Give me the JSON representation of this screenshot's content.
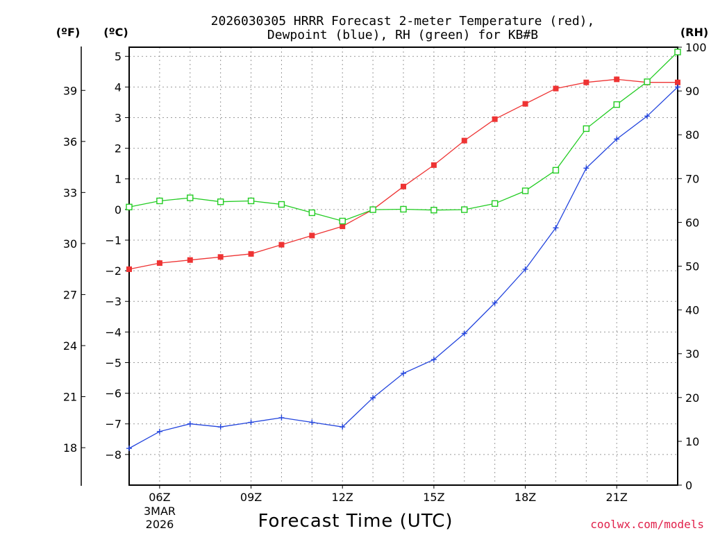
{
  "title_line1": "2026030305 HRRR Forecast 2-meter Temperature (red),",
  "title_line2": "Dewpoint (blue), RH (green) for KB#B",
  "unit_f": "(ºF)",
  "unit_c": "(ºC)",
  "unit_rh": "(RH)",
  "x_axis_label": "Forecast Time (UTC)",
  "date_line1": "3MAR",
  "date_line2": "2026",
  "credit": "coolwx.com/models",
  "colors": {
    "temperature": "#ee3333",
    "dewpoint": "#2244dd",
    "rh": "#22cc22"
  },
  "chart_data": {
    "type": "line",
    "title": "2026030305 HRRR Forecast 2-meter Temperature (red), Dewpoint (blue), RH (green) for KB#B",
    "xlabel": "Forecast Time (UTC)",
    "x_hours": [
      5,
      6,
      7,
      8,
      9,
      10,
      11,
      12,
      13,
      14,
      15,
      16,
      17,
      18,
      19,
      20,
      21,
      22,
      23
    ],
    "x_ticks": [
      {
        "hour": 6,
        "label": "06Z"
      },
      {
        "hour": 9,
        "label": "09Z"
      },
      {
        "hour": 12,
        "label": "12Z"
      },
      {
        "hour": 15,
        "label": "15Z"
      },
      {
        "hour": 18,
        "label": "18Z"
      },
      {
        "hour": 21,
        "label": "21Z"
      }
    ],
    "xlim": [
      5,
      23
    ],
    "ylim_c": [
      -9.0,
      5.3
    ],
    "left_c_ticks": [
      "5",
      "4",
      "3",
      "2",
      "1",
      "0",
      "−1",
      "−2",
      "−3",
      "−4",
      "−5",
      "−6",
      "−7",
      "−8"
    ],
    "left_f_ticks": [
      "39",
      "36",
      "33",
      "30",
      "27",
      "24",
      "21",
      "18"
    ],
    "ylim_rh": [
      0,
      100
    ],
    "right_rh_ticks": [
      "100",
      "90",
      "80",
      "70",
      "60",
      "50",
      "40",
      "30",
      "20",
      "10",
      "0"
    ],
    "series": [
      {
        "name": "Temperature",
        "color_key": "temperature",
        "unit": "C",
        "marker": "filled-square",
        "values": [
          -1.95,
          -1.75,
          -1.65,
          -1.55,
          -1.45,
          -1.15,
          -0.85,
          -0.55,
          0.0,
          0.75,
          1.45,
          2.25,
          2.95,
          3.45,
          3.95,
          4.15,
          4.25,
          4.15,
          4.15
        ]
      },
      {
        "name": "Dewpoint",
        "color_key": "dewpoint",
        "unit": "C",
        "marker": "plus",
        "values": [
          -7.8,
          -7.25,
          -7.0,
          -7.1,
          -6.95,
          -6.8,
          -6.95,
          -7.1,
          -6.15,
          -5.35,
          -4.9,
          -4.05,
          -3.05,
          -1.95,
          -0.6,
          1.35,
          2.3,
          3.05,
          4.0
        ]
      },
      {
        "name": "RH",
        "color_key": "rh",
        "unit": "%",
        "marker": "open-square",
        "values": [
          63.5,
          64.9,
          65.6,
          64.7,
          64.9,
          64.1,
          62.2,
          60.3,
          62.9,
          63.0,
          62.8,
          62.9,
          64.3,
          67.2,
          71.9,
          81.4,
          86.9,
          92.1,
          98.9
        ]
      }
    ]
  }
}
